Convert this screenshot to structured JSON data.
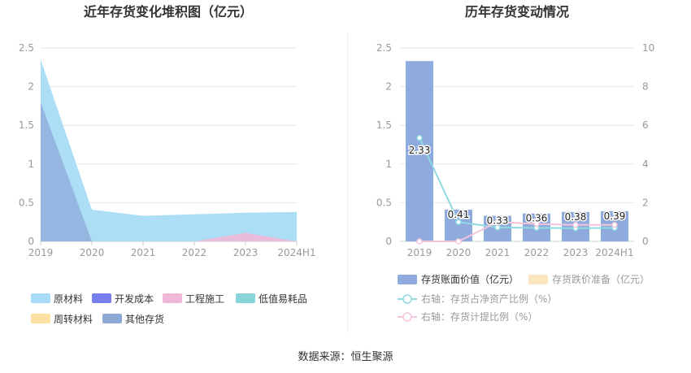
{
  "footer": {
    "label": "数据来源：",
    "source": "恒生聚源"
  },
  "colors": {
    "raw": "#a8dcf6",
    "dev": "#7a7ff0",
    "eng": "#f0b8d8",
    "low": "#88d4d8",
    "turn": "#fde0a3",
    "other": "#8ea8d8",
    "bar": "#8faadc",
    "reserve": "#fce6c2",
    "line1": "#8fd9e0",
    "line2": "#f3c4dc",
    "axis": "#999999",
    "grid": "#e6e6e6",
    "title": "#333333"
  },
  "chart_data": [
    {
      "type": "area",
      "title": "近年存货变化堆积图（亿元）",
      "categories": [
        "2019",
        "2020",
        "2021",
        "2022",
        "2023",
        "2024H1"
      ],
      "ylim": [
        0,
        2.5
      ],
      "yticks": [
        "0",
        "0.5",
        "1",
        "1.5",
        "2",
        "2.5"
      ],
      "series": [
        {
          "name": "原材料",
          "key": "raw",
          "values": [
            2.35,
            0.41,
            0.33,
            0.35,
            0.37,
            0.38
          ]
        },
        {
          "name": "开发成本",
          "key": "dev",
          "values": [
            0,
            0,
            0,
            0,
            0,
            0
          ]
        },
        {
          "name": "工程施工",
          "key": "eng",
          "values": [
            0,
            0,
            0,
            0,
            0.11,
            0
          ]
        },
        {
          "name": "低值易耗品",
          "key": "low",
          "values": [
            0,
            0,
            0,
            0,
            0,
            0
          ]
        },
        {
          "name": "周转材料",
          "key": "turn",
          "values": [
            0,
            0,
            0,
            0,
            0,
            0
          ]
        },
        {
          "name": "其他存货",
          "key": "other",
          "values": [
            1.8,
            0,
            0,
            0,
            0,
            0
          ]
        }
      ],
      "legend": "bottom"
    },
    {
      "type": "bar",
      "title": "历年存货变动情况",
      "categories": [
        "2019",
        "2020",
        "2021",
        "2022",
        "2023",
        "2024H1"
      ],
      "ylim": [
        0,
        2.5
      ],
      "yticks": [
        "0",
        "0.5",
        "1",
        "1.5",
        "2",
        "2.5"
      ],
      "y2lim": [
        0,
        10
      ],
      "y2ticks": [
        "0",
        "2",
        "4",
        "6",
        "8",
        "10"
      ],
      "bars": {
        "name": "存货账面价值（亿元）",
        "values": [
          2.33,
          0.41,
          0.33,
          0.36,
          0.38,
          0.39
        ],
        "labels": [
          "2.33",
          "0.41",
          "0.33",
          "0.36",
          "0.38",
          "0.39"
        ]
      },
      "reserve": {
        "name": "存货跌价准备（亿元）"
      },
      "lines": [
        {
          "name": "右轴：存货占净资产比例（%）",
          "key": "line1",
          "values": [
            5.35,
            1.0,
            0.72,
            0.7,
            0.68,
            0.7
          ]
        },
        {
          "name": "右轴：存货计提比例（%）",
          "key": "line2",
          "values": [
            0,
            0,
            1.0,
            0.9,
            0.85,
            0.85
          ]
        }
      ],
      "legend": "bottom"
    }
  ]
}
